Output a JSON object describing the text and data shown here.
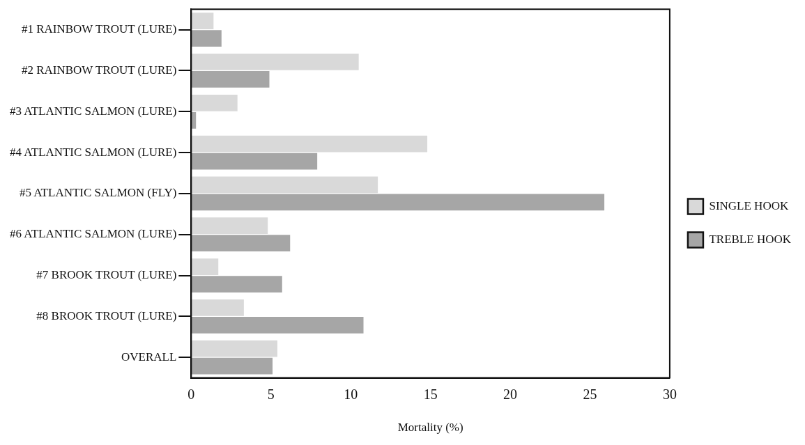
{
  "chart_data": {
    "type": "bar",
    "orientation": "horizontal",
    "xlabel": "Mortality (%)",
    "categories": [
      "#1 RAINBOW TROUT (LURE)",
      "#2 RAINBOW TROUT (LURE)",
      "#3 ATLANTIC SALMON (LURE)",
      "#4 ATLANTIC SALMON (LURE)",
      "#5 ATLANTIC SALMON (FLY)",
      "#6 ATLANTIC SALMON (LURE)",
      "#7 BROOK TROUT (LURE)",
      "#8 BROOK TROUT (LURE)",
      "OVERALL"
    ],
    "series": [
      {
        "name": "SINGLE HOOK",
        "color": "#d9d9d9",
        "values": [
          1.4,
          10.5,
          2.9,
          14.8,
          11.7,
          4.8,
          1.7,
          3.3,
          5.4
        ]
      },
      {
        "name": "TREBLE HOOK",
        "color": "#a6a6a6",
        "values": [
          1.9,
          4.9,
          0.3,
          7.9,
          25.9,
          6.2,
          5.7,
          10.8,
          5.1
        ]
      }
    ],
    "xlim": [
      0,
      30
    ],
    "xticks": [
      0,
      5,
      10,
      15,
      20,
      25,
      30
    ],
    "legend": "right"
  }
}
